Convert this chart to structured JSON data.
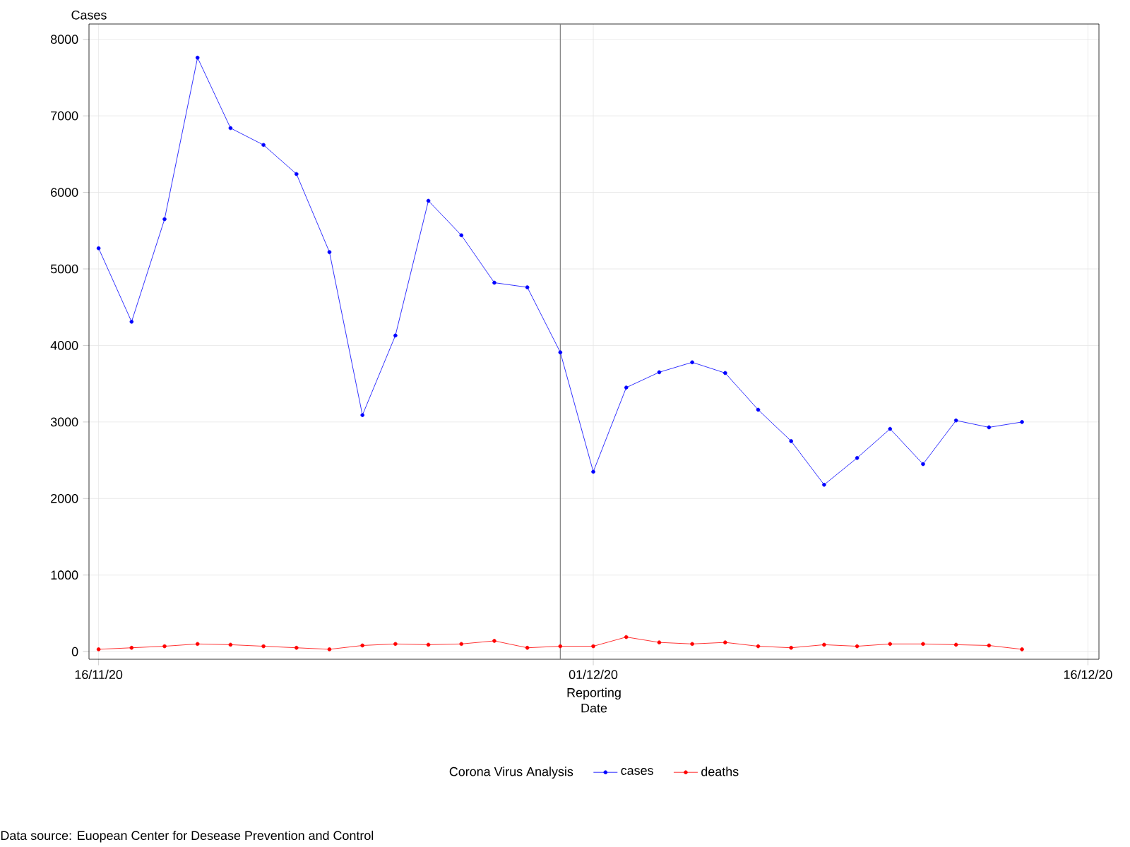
{
  "chart_data": {
    "type": "line",
    "xlabel": "Reporting Date",
    "ylabel": "Cases",
    "legend_title": "Corona Virus Analysis",
    "x": [
      "2020-11-16",
      "2020-11-17",
      "2020-11-18",
      "2020-11-19",
      "2020-11-20",
      "2020-11-21",
      "2020-11-22",
      "2020-11-23",
      "2020-11-24",
      "2020-11-25",
      "2020-11-26",
      "2020-11-27",
      "2020-11-28",
      "2020-11-29",
      "2020-11-30",
      "2020-12-01",
      "2020-12-02",
      "2020-12-03",
      "2020-12-04",
      "2020-12-05",
      "2020-12-06",
      "2020-12-07",
      "2020-12-08",
      "2020-12-09",
      "2020-12-10",
      "2020-12-11",
      "2020-12-12",
      "2020-12-13",
      "2020-12-14"
    ],
    "series": [
      {
        "name": "cases",
        "color": "#0000ff",
        "values": [
          5270,
          4310,
          5650,
          7760,
          6840,
          6620,
          6240,
          5220,
          3090,
          4130,
          5890,
          5440,
          4820,
          4760,
          3910,
          2350,
          3450,
          3650,
          3780,
          3640,
          3160,
          2750,
          2180,
          2530,
          2910,
          2450,
          3020,
          2930,
          3000
        ]
      },
      {
        "name": "deaths",
        "color": "#ff0000",
        "values": [
          30,
          50,
          70,
          100,
          90,
          70,
          50,
          30,
          80,
          100,
          90,
          100,
          140,
          50,
          70,
          70,
          190,
          120,
          100,
          120,
          70,
          50,
          90,
          70,
          100,
          100,
          90,
          80,
          30
        ]
      }
    ],
    "xlim": [
      "2020-11-15T17:00",
      "2020-12-16T08:00"
    ],
    "ylim": [
      -100,
      8200
    ],
    "xticks": [
      {
        "value": "2020-11-16",
        "label": "16/11/20"
      },
      {
        "value": "2020-12-01",
        "label": "01/12/20"
      },
      {
        "value": "2020-12-16",
        "label": "16/12/20"
      }
    ],
    "yticks": [
      0,
      1000,
      2000,
      3000,
      4000,
      5000,
      6000,
      7000,
      8000
    ],
    "ref_lines": [
      {
        "axis": "x",
        "value": "2020-11-30",
        "color": "#808080"
      }
    ],
    "grid": true,
    "legend": "bottom",
    "marker": "circle",
    "line_style": "solid",
    "annotations": [
      "Data source: Euopean Center for Desease Prevention and Control"
    ]
  }
}
